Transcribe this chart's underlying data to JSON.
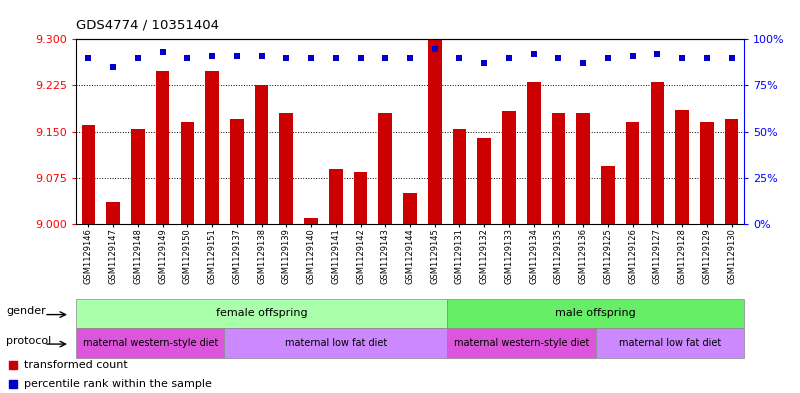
{
  "title": "GDS4774 / 10351404",
  "samples": [
    "GSM1129146",
    "GSM1129147",
    "GSM1129148",
    "GSM1129149",
    "GSM1129150",
    "GSM1129151",
    "GSM1129137",
    "GSM1129138",
    "GSM1129139",
    "GSM1129140",
    "GSM1129141",
    "GSM1129142",
    "GSM1129143",
    "GSM1129144",
    "GSM1129145",
    "GSM1129131",
    "GSM1129132",
    "GSM1129133",
    "GSM1129134",
    "GSM1129135",
    "GSM1129136",
    "GSM1129125",
    "GSM1129126",
    "GSM1129127",
    "GSM1129128",
    "GSM1129129",
    "GSM1129130"
  ],
  "bar_values": [
    9.16,
    9.035,
    9.155,
    9.248,
    9.165,
    9.248,
    9.17,
    9.225,
    9.18,
    9.01,
    9.09,
    9.085,
    9.18,
    9.05,
    9.3,
    9.155,
    9.14,
    9.183,
    9.23,
    9.18,
    9.18,
    9.095,
    9.165,
    9.23,
    9.185,
    9.165,
    9.17
  ],
  "percentile_values": [
    90,
    85,
    90,
    93,
    90,
    91,
    91,
    91,
    90,
    90,
    90,
    90,
    90,
    90,
    95,
    90,
    87,
    90,
    92,
    90,
    87,
    90,
    91,
    92,
    90,
    90,
    90
  ],
  "bar_color": "#cc0000",
  "dot_color": "#0000cc",
  "ylim_left": [
    9.0,
    9.3
  ],
  "ylim_right": [
    0,
    100
  ],
  "yticks_left": [
    9.0,
    9.075,
    9.15,
    9.225,
    9.3
  ],
  "yticks_right": [
    0,
    25,
    50,
    75,
    100
  ],
  "grid_values": [
    9.075,
    9.15,
    9.225
  ],
  "gender_groups": [
    {
      "label": "female offspring",
      "start": 0,
      "end": 14,
      "color": "#aaffaa"
    },
    {
      "label": "male offspring",
      "start": 15,
      "end": 26,
      "color": "#66ee66"
    }
  ],
  "protocol_groups": [
    {
      "label": "maternal western-style diet",
      "start": 0,
      "end": 5,
      "color": "#dd55dd"
    },
    {
      "label": "maternal low fat diet",
      "start": 6,
      "end": 14,
      "color": "#cc88ff"
    },
    {
      "label": "maternal western-style diet",
      "start": 15,
      "end": 20,
      "color": "#dd55dd"
    },
    {
      "label": "maternal low fat diet",
      "start": 21,
      "end": 26,
      "color": "#cc88ff"
    }
  ],
  "gender_label": "gender",
  "protocol_label": "protocol",
  "legend_bar_label": "transformed count",
  "legend_dot_label": "percentile rank within the sample",
  "background_color": "#ffffff",
  "bar_width": 0.55
}
